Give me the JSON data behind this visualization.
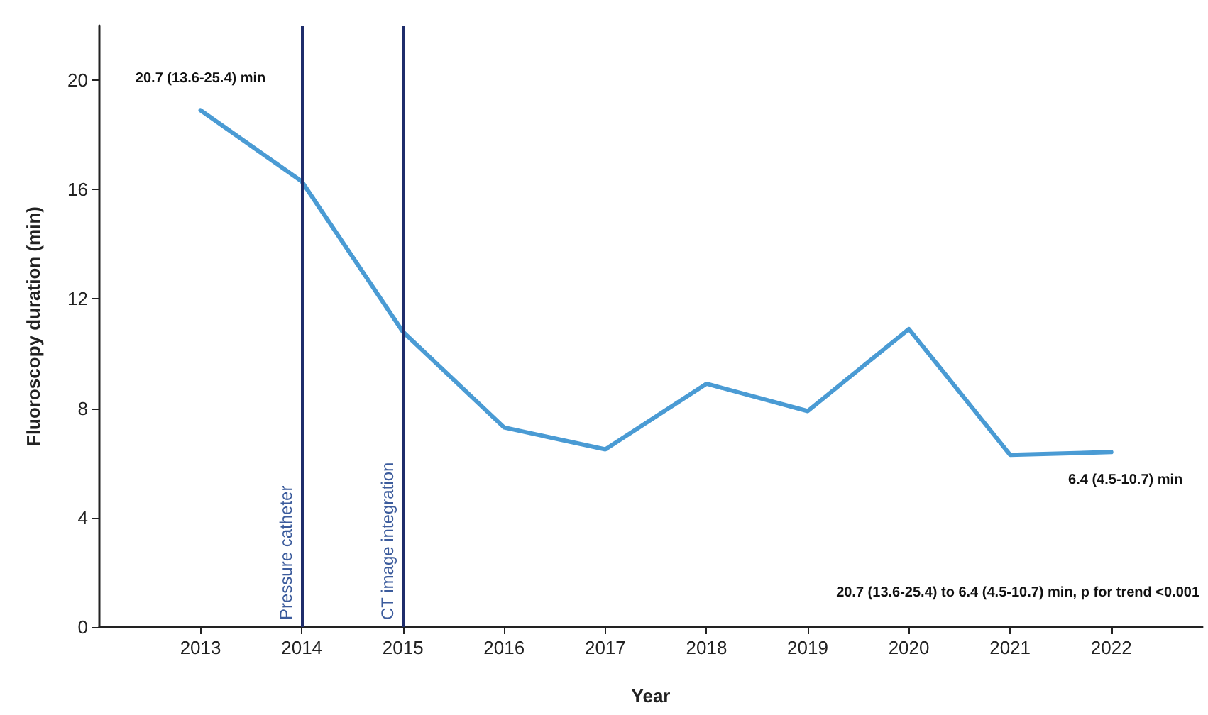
{
  "chart_data": {
    "type": "line",
    "xlabel": "Year",
    "ylabel": "Fluoroscopy duration (min)",
    "x": [
      2013,
      2014,
      2015,
      2016,
      2017,
      2018,
      2019,
      2020,
      2021,
      2022
    ],
    "series": [
      {
        "color": "#4a9bd4",
        "values": [
          18.9,
          16.3,
          10.8,
          7.3,
          6.5,
          8.9,
          7.9,
          10.9,
          6.3,
          6.4
        ]
      }
    ],
    "xlim": [
      2012,
      2022.9
    ],
    "xticks": [
      2013,
      2014,
      2015,
      2016,
      2017,
      2018,
      2019,
      2020,
      2021,
      2022
    ],
    "ylim": [
      0,
      22
    ],
    "yticks": [
      0,
      4,
      8,
      12,
      16,
      20
    ],
    "grid": false,
    "marker": "none",
    "line_style": "solid",
    "ref_lines": [
      {
        "axis": "x",
        "value": 2014,
        "label": "Pressure catheter",
        "color": "#1f2d6b"
      },
      {
        "axis": "x",
        "value": 2015,
        "label": "CT image integration",
        "color": "#1f2d6b"
      }
    ],
    "annotations": [
      "20.7 (13.6-25.4) min",
      "6.4 (4.5-10.7) min",
      "20.7 (13.6-25.4) to 6.4 (4.5-10.7) min, p for trend <0.001"
    ]
  }
}
